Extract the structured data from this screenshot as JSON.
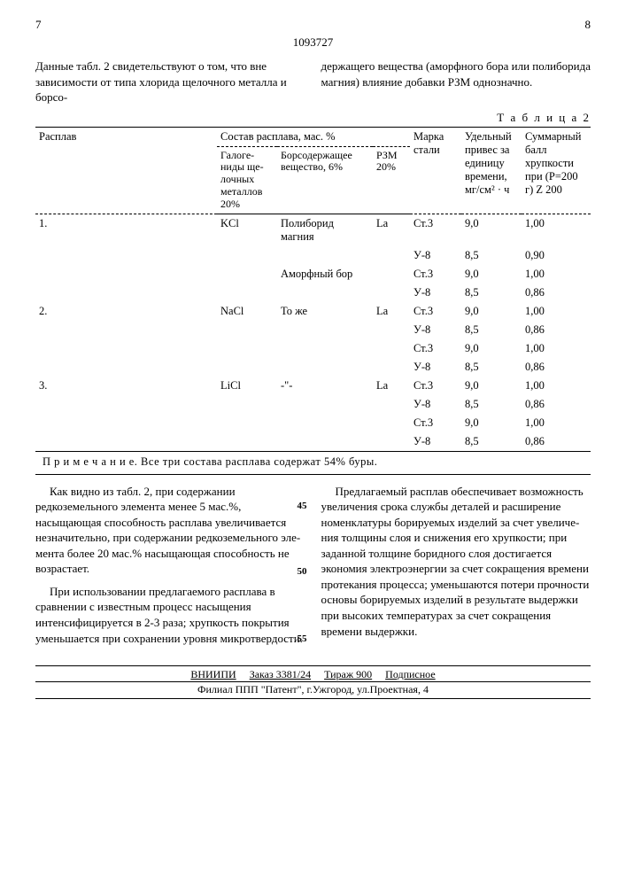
{
  "page": {
    "left_num": "7",
    "right_num": "8",
    "doc_number": "1093727"
  },
  "intro": {
    "left": "Данные табл. 2 свидетельствуют о том, что вне зависимости от типа хлорида щелочного металла и борсо-",
    "right": "держащего вещества (аморфного бора или полиборида магния) влияние добав­ки РЗМ однозначно."
  },
  "table": {
    "caption": "Т а б л и ц а  2",
    "headers": {
      "melt": "Расплав",
      "composition": "Состав расплава, мас. %",
      "steel": "Марка стали",
      "gain": "Удельный привес за единицу времени, мг/см² · ч",
      "brittleness": "Суммарный балл хрупкости при (P=200 г) Z 200",
      "sub_halide": "Галоге­ниды ще­лочных металлов 20%",
      "sub_boron": "Борсодержащее вещество, 6%",
      "sub_rzm": "РЗМ 20%"
    },
    "rows": [
      {
        "n": "1.",
        "halide": "KCl",
        "boron": "Полиборид магния",
        "rzm": "La",
        "steel": "Ст.3",
        "gain": "9,0",
        "ball": "1,00"
      },
      {
        "n": "",
        "halide": "",
        "boron": "",
        "rzm": "",
        "steel": "У-8",
        "gain": "8,5",
        "ball": "0,90"
      },
      {
        "n": "",
        "halide": "",
        "boron": "Аморфный бор",
        "rzm": "",
        "steel": "Ст.3",
        "gain": "9,0",
        "ball": "1,00"
      },
      {
        "n": "",
        "halide": "",
        "boron": "",
        "rzm": "",
        "steel": "У-8",
        "gain": "8,5",
        "ball": "0,86"
      },
      {
        "n": "2.",
        "halide": "NaCl",
        "boron": "То же",
        "rzm": "La",
        "steel": "Ст.3",
        "gain": "9,0",
        "ball": "1,00",
        "sep": true
      },
      {
        "n": "",
        "halide": "",
        "boron": "",
        "rzm": "",
        "steel": "У-8",
        "gain": "8,5",
        "ball": "0,86"
      },
      {
        "n": "",
        "halide": "",
        "boron": "",
        "rzm": "",
        "steel": "Ст.3",
        "gain": "9,0",
        "ball": "1,00"
      },
      {
        "n": "",
        "halide": "",
        "boron": "",
        "rzm": "",
        "steel": "У-8",
        "gain": "8,5",
        "ball": "0,86"
      },
      {
        "n": "3.",
        "halide": "LiCl",
        "boron": "-\"-",
        "rzm": "La",
        "steel": "Ст.3",
        "gain": "9,0",
        "ball": "1,00",
        "sep": true
      },
      {
        "n": "",
        "halide": "",
        "boron": "",
        "rzm": "",
        "steel": "У-8",
        "gain": "8,5",
        "ball": "0,86"
      },
      {
        "n": "",
        "halide": "",
        "boron": "",
        "rzm": "",
        "steel": "Ст.3",
        "gain": "9,0",
        "ball": "1,00"
      },
      {
        "n": "",
        "halide": "",
        "boron": "",
        "rzm": "",
        "steel": "У-8",
        "gain": "8,5",
        "ball": "0,86"
      }
    ],
    "note": "П р и м е ч а н и е. Все три состава расплава содержат 54% буры."
  },
  "body": {
    "left_p1": "Как видно из табл. 2, при содер­жании редкоземельного элемента менее 5 мас.%, насыщающая способность расплава увеличивается незначительно, при содержании редкоземельного эле­мента более 20 мас.% насыщающая спо­собность не возрастает.",
    "left_p2": "При использовании предлагаемого расплава в сравнении с известным про­цесс насыщения интенсифицируется в 2-3 раза; хрупкость покрытия уменьшается при сохранении уровня микротвердости.",
    "right_p1": "Предлагаемый расплав обеспечивает возможность увеличения срока службы деталей и расширение номенклатуры борируемых изделий за счет увеличе­ния толщины слоя и снижения его хрупкос­ти; при заданной толщине боридного слоя достигается экономия электро­энергии за счет сокращения времени протекания процесса; уменьшаются по­тери прочности основы борируемых из­делий в результате выдержки при вы­соких температурах за счет сокраще­ния времени выдержки.",
    "margin_45": "45",
    "margin_50": "50",
    "margin_55": "55"
  },
  "colophon": {
    "org": "ВНИИПИ",
    "order": "Заказ 3381/24",
    "tirazh": "Тираж 900",
    "sub": "Подписное",
    "line2": "Филиал ППП \"Патент\", г.Ужгород, ул.Проектная, 4"
  }
}
